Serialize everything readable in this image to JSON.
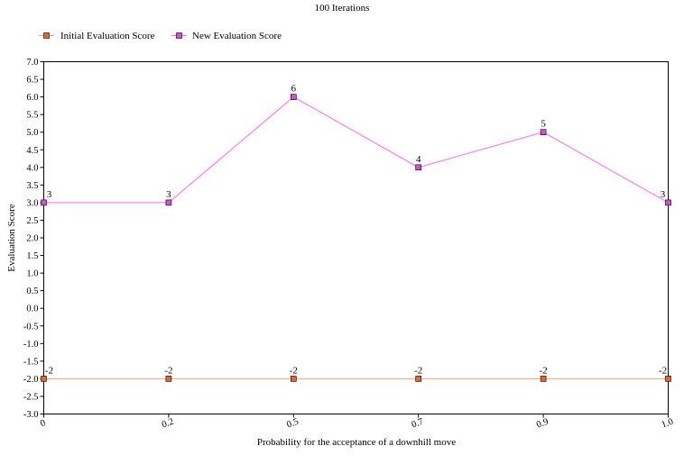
{
  "chart_data": {
    "type": "line",
    "title": "100 Iterations",
    "xlabel": "Probability for the acceptance of a downhill move",
    "ylabel": "Evaluation Score",
    "categories": [
      "0",
      "0.2",
      "0.5",
      "0.7",
      "0.9",
      "1.0"
    ],
    "ylim": [
      -3.0,
      7.0
    ],
    "ytick_step": 0.5,
    "grid": false,
    "legend_position": "top-left",
    "series": [
      {
        "name": "Initial Evaluation Score",
        "values": [
          -2,
          -2,
          -2,
          -2,
          -2,
          -2
        ],
        "line_color": "#f4a080",
        "marker_color": "#e8662a"
      },
      {
        "name": "New Evaluation Score",
        "values": [
          3,
          3,
          6,
          4,
          5,
          3
        ],
        "line_color": "#ff66ff",
        "marker_color": "#d24fd2"
      }
    ]
  }
}
